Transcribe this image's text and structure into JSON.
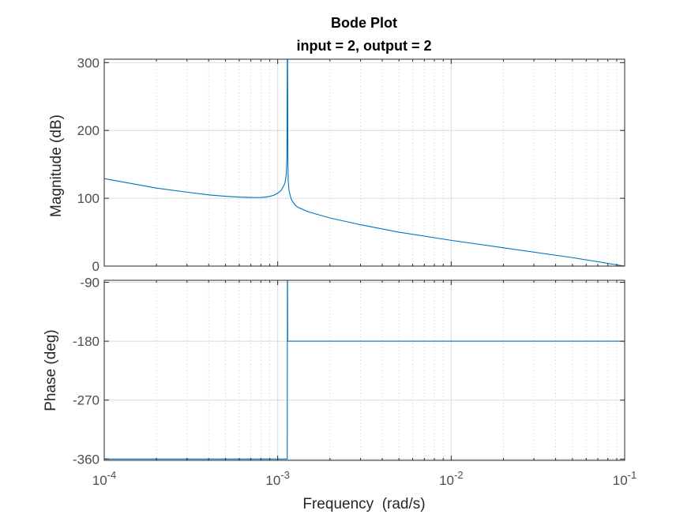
{
  "chart_data": {
    "type": "line",
    "title": "Bode Plot",
    "subtitle": "input = 2, output = 2",
    "xlabel": "Frequency  (rad/s)",
    "xscale": "log",
    "xlim": [
      0.0001,
      0.1
    ],
    "x_ticks": [
      {
        "value": 0.0001,
        "base": "10",
        "exp": "-4"
      },
      {
        "value": 0.001,
        "base": "10",
        "exp": "-3"
      },
      {
        "value": 0.01,
        "base": "10",
        "exp": "-2"
      },
      {
        "value": 0.1,
        "base": "10",
        "exp": "-1"
      }
    ],
    "grid": true,
    "color": "#0072bd",
    "panels": [
      {
        "name": "magnitude",
        "ylabel": "Magnitude (dB)",
        "ylim": [
          0,
          305
        ],
        "y_ticks": [
          0,
          100,
          200,
          300
        ],
        "series": [
          {
            "x": [
              0.0001,
              0.0002,
              0.0003,
              0.0004,
              0.0005,
              0.0006,
              0.0007,
              0.00075,
              0.0008,
              0.00085,
              0.0009,
              0.00095,
              0.001,
              0.00105,
              0.0011,
              0.00112,
              0.00113,
              0.001135,
              0.00114,
              0.001145,
              0.00115,
              0.00116,
              0.00118,
              0.0012,
              0.00125,
              0.0013,
              0.0015,
              0.002,
              0.003,
              0.005,
              0.01,
              0.02,
              0.05,
              0.1
            ],
            "y": [
              129,
              115,
              109,
              105,
              103,
              101.8,
              101.2,
              101,
              101.2,
              101.8,
              102.8,
              104.5,
              107.5,
              112,
              122,
              135,
              160,
              305,
              305,
              150,
              125,
              113,
              104,
              98,
              91,
              87,
              80,
              71,
              61,
              50,
              38,
              27,
              12.5,
              0
            ]
          }
        ]
      },
      {
        "name": "phase",
        "ylabel": "Phase (deg)",
        "ylim": [
          -362,
          -87
        ],
        "y_ticks": [
          -360,
          -270,
          -180,
          -90
        ],
        "series": [
          {
            "x": [
              0.0001,
              0.00112,
              0.001135,
              0.001137,
              0.00114,
              0.001142,
              0.00115,
              0.1
            ],
            "y": [
              -360,
              -360,
              -360,
              -88,
              -88,
              -180,
              -180,
              -180
            ]
          }
        ]
      }
    ]
  }
}
